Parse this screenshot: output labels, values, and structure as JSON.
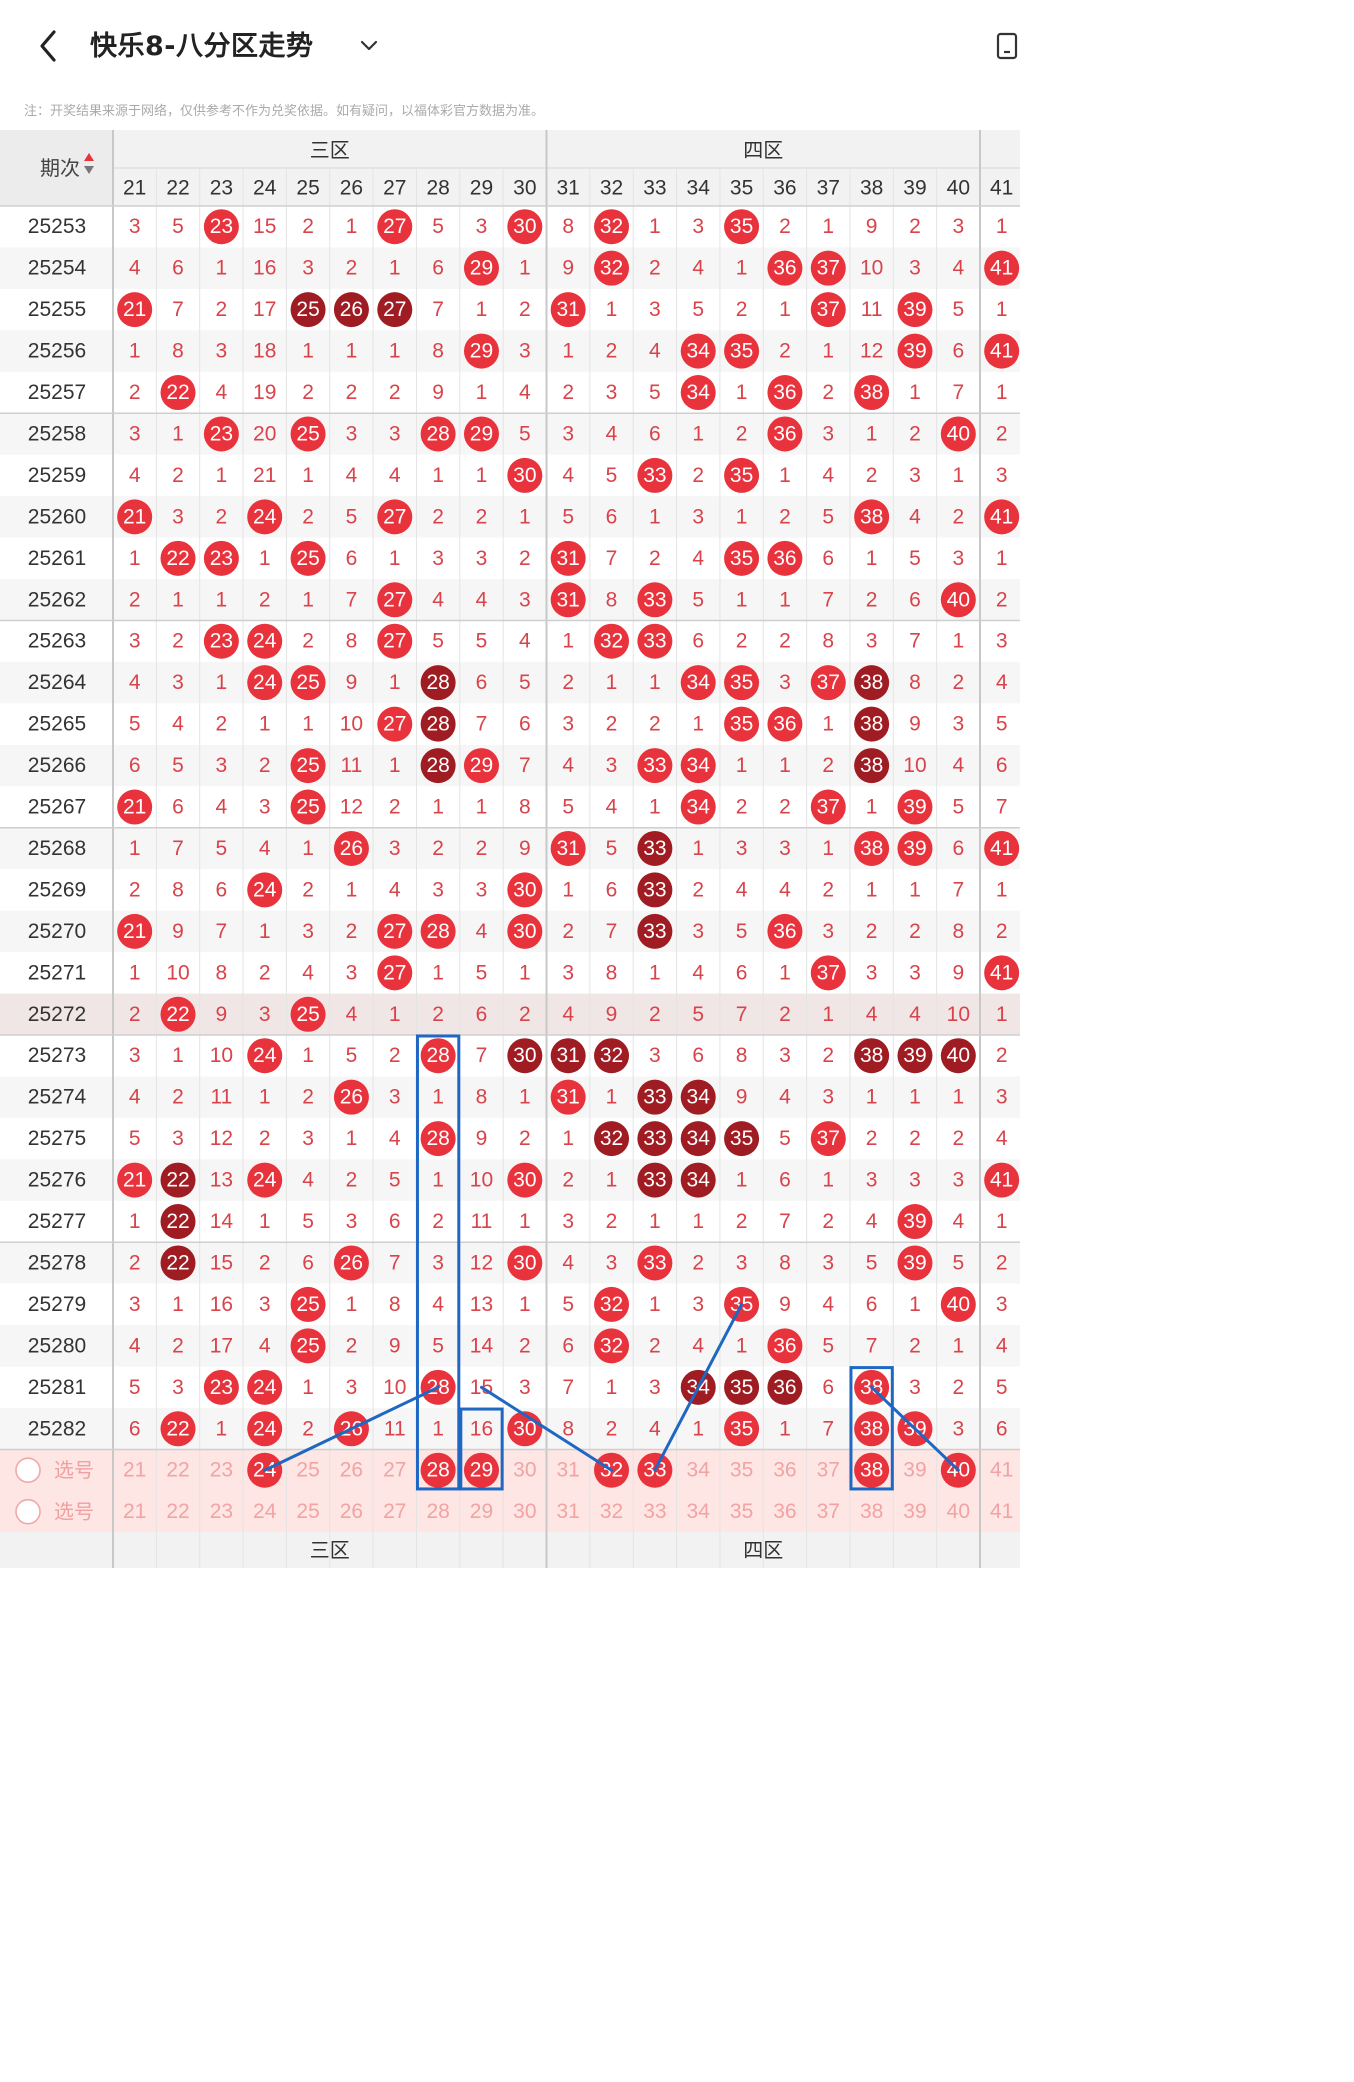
{
  "header": {
    "title": "快乐8-八分区走势",
    "back_icon": "chevron-left-icon",
    "dropdown_icon": "chevron-down-icon",
    "side_icon": "device-icon"
  },
  "note": "注：开奖结果来源于网络，仅供参考不作为兑奖依据。如有疑问，以福体彩官方数据为准。",
  "table": {
    "period_header": "期次",
    "zones": [
      "三区",
      "四区"
    ],
    "columns": [
      "21",
      "22",
      "23",
      "24",
      "25",
      "26",
      "27",
      "28",
      "29",
      "30",
      "31",
      "32",
      "33",
      "34",
      "35",
      "36",
      "37",
      "38",
      "39",
      "40",
      "41"
    ],
    "rows": [
      {
        "p": "25253",
        "v": [
          "3",
          "5",
          "23",
          "15",
          "2",
          "1",
          "27",
          "5",
          "3",
          "30",
          "8",
          "32",
          "1",
          "3",
          "35",
          "2",
          "1",
          "9",
          "2",
          "3",
          "1"
        ]
      },
      {
        "p": "25254",
        "v": [
          "4",
          "6",
          "1",
          "16",
          "3",
          "2",
          "1",
          "6",
          "29",
          "1",
          "9",
          "32",
          "2",
          "4",
          "1",
          "36",
          "37",
          "10",
          "3",
          "4",
          "41"
        ]
      },
      {
        "p": "25255",
        "v": [
          "21",
          "7",
          "2",
          "17",
          "25",
          "26",
          "27",
          "7",
          "1",
          "2",
          "31",
          "1",
          "3",
          "5",
          "2",
          "1",
          "37",
          "11",
          "39",
          "5",
          "1"
        ]
      },
      {
        "p": "25256",
        "v": [
          "1",
          "8",
          "3",
          "18",
          "1",
          "1",
          "1",
          "8",
          "29",
          "3",
          "1",
          "2",
          "4",
          "34",
          "35",
          "2",
          "1",
          "12",
          "39",
          "6",
          "41"
        ]
      },
      {
        "p": "25257",
        "v": [
          "2",
          "22",
          "4",
          "19",
          "2",
          "2",
          "2",
          "9",
          "1",
          "4",
          "2",
          "3",
          "5",
          "34",
          "1",
          "36",
          "2",
          "38",
          "1",
          "7",
          "1"
        ]
      },
      {
        "p": "25258",
        "v": [
          "3",
          "1",
          "23",
          "20",
          "25",
          "3",
          "3",
          "28",
          "29",
          "5",
          "3",
          "4",
          "6",
          "1",
          "2",
          "36",
          "3",
          "1",
          "2",
          "40",
          "2"
        ]
      },
      {
        "p": "25259",
        "v": [
          "4",
          "2",
          "1",
          "21",
          "1",
          "4",
          "4",
          "1",
          "1",
          "30",
          "4",
          "5",
          "33",
          "2",
          "35",
          "1",
          "4",
          "2",
          "3",
          "1",
          "3"
        ]
      },
      {
        "p": "25260",
        "v": [
          "21",
          "3",
          "2",
          "24",
          "2",
          "5",
          "27",
          "2",
          "2",
          "1",
          "5",
          "6",
          "1",
          "3",
          "1",
          "2",
          "5",
          "38",
          "4",
          "2",
          "41"
        ]
      },
      {
        "p": "25261",
        "v": [
          "1",
          "22",
          "23",
          "1",
          "25",
          "6",
          "1",
          "3",
          "3",
          "2",
          "31",
          "7",
          "2",
          "4",
          "35",
          "36",
          "6",
          "1",
          "5",
          "3",
          "1"
        ]
      },
      {
        "p": "25262",
        "v": [
          "2",
          "1",
          "1",
          "2",
          "1",
          "7",
          "27",
          "4",
          "4",
          "3",
          "31",
          "8",
          "33",
          "5",
          "1",
          "1",
          "7",
          "2",
          "6",
          "40",
          "2"
        ]
      },
      {
        "p": "25263",
        "v": [
          "3",
          "2",
          "23",
          "24",
          "2",
          "8",
          "27",
          "5",
          "5",
          "4",
          "1",
          "32",
          "33",
          "6",
          "2",
          "2",
          "8",
          "3",
          "7",
          "1",
          "3"
        ]
      },
      {
        "p": "25264",
        "v": [
          "4",
          "3",
          "1",
          "24",
          "25",
          "9",
          "1",
          "28",
          "6",
          "5",
          "2",
          "1",
          "1",
          "34",
          "35",
          "3",
          "37",
          "38",
          "8",
          "2",
          "4"
        ]
      },
      {
        "p": "25265",
        "v": [
          "5",
          "4",
          "2",
          "1",
          "1",
          "10",
          "27",
          "28",
          "7",
          "6",
          "3",
          "2",
          "2",
          "1",
          "35",
          "36",
          "1",
          "38",
          "9",
          "3",
          "5"
        ]
      },
      {
        "p": "25266",
        "v": [
          "6",
          "5",
          "3",
          "2",
          "25",
          "11",
          "1",
          "28",
          "29",
          "7",
          "4",
          "3",
          "33",
          "34",
          "1",
          "1",
          "2",
          "38",
          "10",
          "4",
          "6"
        ]
      },
      {
        "p": "25267",
        "v": [
          "21",
          "6",
          "4",
          "3",
          "25",
          "12",
          "2",
          "1",
          "1",
          "8",
          "5",
          "4",
          "1",
          "34",
          "2",
          "2",
          "37",
          "1",
          "39",
          "5",
          "7"
        ]
      },
      {
        "p": "25268",
        "v": [
          "1",
          "7",
          "5",
          "4",
          "1",
          "26",
          "3",
          "2",
          "2",
          "9",
          "31",
          "5",
          "33",
          "1",
          "3",
          "3",
          "1",
          "38",
          "39",
          "6",
          "41"
        ]
      },
      {
        "p": "25269",
        "v": [
          "2",
          "8",
          "6",
          "24",
          "2",
          "1",
          "4",
          "3",
          "3",
          "30",
          "1",
          "6",
          "33",
          "2",
          "4",
          "4",
          "2",
          "1",
          "1",
          "7",
          "1"
        ]
      },
      {
        "p": "25270",
        "v": [
          "21",
          "9",
          "7",
          "1",
          "3",
          "2",
          "27",
          "28",
          "4",
          "30",
          "2",
          "7",
          "33",
          "3",
          "5",
          "36",
          "3",
          "2",
          "2",
          "8",
          "2"
        ]
      },
      {
        "p": "25271",
        "v": [
          "1",
          "10",
          "8",
          "2",
          "4",
          "3",
          "27",
          "1",
          "5",
          "1",
          "3",
          "8",
          "1",
          "4",
          "6",
          "1",
          "37",
          "3",
          "3",
          "9",
          "41"
        ]
      },
      {
        "p": "25272",
        "v": [
          "2",
          "22",
          "9",
          "3",
          "25",
          "4",
          "1",
          "2",
          "6",
          "2",
          "4",
          "9",
          "2",
          "5",
          "7",
          "2",
          "1",
          "4",
          "4",
          "10",
          "1"
        ]
      },
      {
        "p": "25273",
        "v": [
          "3",
          "1",
          "10",
          "24",
          "1",
          "5",
          "2",
          "28",
          "7",
          "30",
          "31",
          "32",
          "3",
          "6",
          "8",
          "3",
          "2",
          "38",
          "39",
          "40",
          "2"
        ]
      },
      {
        "p": "25274",
        "v": [
          "4",
          "2",
          "11",
          "1",
          "2",
          "26",
          "3",
          "1",
          "8",
          "1",
          "31",
          "1",
          "33",
          "34",
          "9",
          "4",
          "3",
          "1",
          "1",
          "1",
          "3"
        ]
      },
      {
        "p": "25275",
        "v": [
          "5",
          "3",
          "12",
          "2",
          "3",
          "1",
          "4",
          "28",
          "9",
          "2",
          "1",
          "32",
          "33",
          "34",
          "35",
          "5",
          "37",
          "2",
          "2",
          "2",
          "4"
        ]
      },
      {
        "p": "25276",
        "v": [
          "21",
          "22",
          "13",
          "24",
          "4",
          "2",
          "5",
          "1",
          "10",
          "30",
          "2",
          "1",
          "33",
          "34",
          "1",
          "6",
          "1",
          "3",
          "3",
          "3",
          "41"
        ]
      },
      {
        "p": "25277",
        "v": [
          "1",
          "22",
          "14",
          "1",
          "5",
          "3",
          "6",
          "2",
          "11",
          "1",
          "3",
          "2",
          "1",
          "1",
          "2",
          "7",
          "2",
          "4",
          "39",
          "4",
          "1"
        ]
      },
      {
        "p": "25278",
        "v": [
          "2",
          "22",
          "15",
          "2",
          "6",
          "26",
          "7",
          "3",
          "12",
          "30",
          "4",
          "3",
          "33",
          "2",
          "3",
          "8",
          "3",
          "5",
          "39",
          "5",
          "2"
        ]
      },
      {
        "p": "25279",
        "v": [
          "3",
          "1",
          "16",
          "3",
          "25",
          "1",
          "8",
          "4",
          "13",
          "1",
          "5",
          "32",
          "1",
          "3",
          "35",
          "9",
          "4",
          "6",
          "1",
          "40",
          "3"
        ]
      },
      {
        "p": "25280",
        "v": [
          "4",
          "2",
          "17",
          "4",
          "25",
          "2",
          "9",
          "5",
          "14",
          "2",
          "6",
          "32",
          "2",
          "4",
          "1",
          "36",
          "5",
          "7",
          "2",
          "1",
          "4"
        ]
      },
      {
        "p": "25281",
        "v": [
          "5",
          "3",
          "23",
          "24",
          "1",
          "3",
          "10",
          "28",
          "15",
          "3",
          "7",
          "1",
          "3",
          "34",
          "35",
          "36",
          "6",
          "38",
          "3",
          "2",
          "5"
        ]
      },
      {
        "p": "25282",
        "v": [
          "6",
          "22",
          "1",
          "24",
          "2",
          "26",
          "11",
          "1",
          "16",
          "30",
          "8",
          "2",
          "4",
          "1",
          "35",
          "1",
          "7",
          "38",
          "39",
          "3",
          "6"
        ]
      }
    ],
    "dark_cells": [
      [
        "25255",
        "25"
      ],
      [
        "25255",
        "26"
      ],
      [
        "25255",
        "27"
      ],
      [
        "25264",
        "28"
      ],
      [
        "25264",
        "38"
      ],
      [
        "25265",
        "28"
      ],
      [
        "25265",
        "38"
      ],
      [
        "25266",
        "28"
      ],
      [
        "25266",
        "38"
      ],
      [
        "25268",
        "33"
      ],
      [
        "25269",
        "33"
      ],
      [
        "25270",
        "33"
      ],
      [
        "25273",
        "30"
      ],
      [
        "25273",
        "31"
      ],
      [
        "25273",
        "32"
      ],
      [
        "25273",
        "38"
      ],
      [
        "25273",
        "39"
      ],
      [
        "25273",
        "40"
      ],
      [
        "25274",
        "33"
      ],
      [
        "25274",
        "34"
      ],
      [
        "25275",
        "32"
      ],
      [
        "25275",
        "33"
      ],
      [
        "25275",
        "34"
      ],
      [
        "25275",
        "35"
      ],
      [
        "25276",
        "22"
      ],
      [
        "25276",
        "33"
      ],
      [
        "25276",
        "34"
      ],
      [
        "25277",
        "22"
      ],
      [
        "25278",
        "22"
      ],
      [
        "25281",
        "34"
      ],
      [
        "25281",
        "35"
      ],
      [
        "25281",
        "36"
      ]
    ],
    "highlight_row": "25272",
    "select_label": "选号",
    "select_rows": [
      {
        "picks": [
          "24",
          "28",
          "29",
          "32",
          "33",
          "38",
          "40"
        ]
      },
      {
        "picks": []
      }
    ],
    "annotations": {
      "boxes": [
        {
          "col": "28",
          "from": "25273",
          "to": "sel1"
        },
        {
          "col": "29",
          "from": "25282",
          "to": "sel1"
        },
        {
          "col": "38",
          "from": "25281",
          "to": "sel1"
        }
      ],
      "lines": [
        {
          "from": [
            "25281",
            "28"
          ],
          "to": [
            "sel1",
            "24"
          ]
        },
        {
          "from": [
            "25281",
            "29"
          ],
          "to": [
            "sel1",
            "32"
          ]
        },
        {
          "from": [
            "25279",
            "35"
          ],
          "to": [
            "sel1",
            "33"
          ]
        },
        {
          "from": [
            "25281",
            "38"
          ],
          "to": [
            "sel1",
            "40"
          ]
        }
      ]
    }
  },
  "colors": {
    "red": "#e8323c",
    "dark": "#9e1c22",
    "text_red": "#d9434a",
    "line_blue": "#1e67c2",
    "pick_row_bg": "#fde6e4"
  }
}
